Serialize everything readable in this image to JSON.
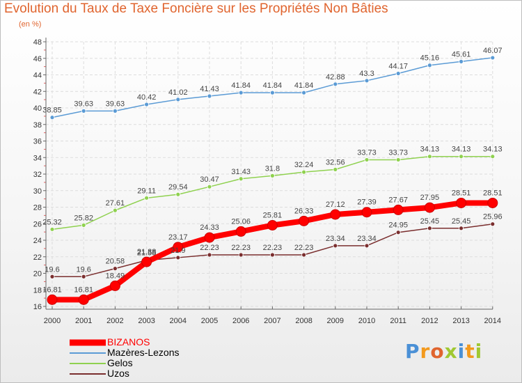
{
  "header": {
    "title": "Evolution du Taux de Taxe Foncière sur les Propriétés Non Bâties",
    "subtitle": "(en %)"
  },
  "logo": {
    "letters": [
      "P",
      "r",
      "o",
      "x",
      "i",
      "t",
      "i"
    ],
    "colors": [
      "#4a90d6",
      "#f39a1e",
      "#e0642e",
      "#a0c832",
      "#4a90d6",
      "#f39a1e",
      "#a0c832"
    ]
  },
  "chart_data": {
    "type": "line",
    "title": "Evolution du Taux de Taxe Foncière sur les Propriétés Non Bâties",
    "subtitle": "(en %)",
    "x": [
      "2000",
      "2001",
      "2002",
      "2003",
      "2004",
      "2005",
      "2006",
      "2007",
      "2008",
      "2009",
      "2010",
      "2011",
      "2012",
      "2013",
      "2014"
    ],
    "ylim": [
      16,
      48
    ],
    "yticks": [
      16,
      18,
      20,
      22,
      24,
      26,
      28,
      30,
      32,
      34,
      36,
      38,
      40,
      42,
      44,
      46,
      48
    ],
    "grid": true,
    "legend_position": "bottom-left",
    "series": [
      {
        "name": "BIZANOS",
        "color": "#ff0000",
        "values": [
          16.81,
          16.81,
          18.49,
          21.38,
          23.17,
          24.33,
          25.06,
          25.81,
          26.33,
          27.12,
          27.39,
          27.67,
          27.95,
          28.51,
          28.51
        ],
        "labels": [
          "16.81",
          "16.81",
          "18.49",
          "21.38",
          "23.17",
          "24.33",
          "25.06",
          "25.81",
          "26.33",
          "27.12",
          "27.39",
          "27.67",
          "27.95",
          "28.51",
          "28.51"
        ]
      },
      {
        "name": "Mazères-Lezons",
        "color": "#5b9bd5",
        "values": [
          38.85,
          39.63,
          39.63,
          40.42,
          41.02,
          41.43,
          41.84,
          41.84,
          41.84,
          42.88,
          43.3,
          44.17,
          45.16,
          45.61,
          46.07
        ],
        "labels": [
          "38.85",
          "39.63",
          "39.63",
          "40.42",
          "41.02",
          "41.43",
          "41.84",
          "41.84",
          "41.84",
          "42.88",
          "43.3",
          "44.17",
          "45.16",
          "45.61",
          "46.07"
        ]
      },
      {
        "name": "Gelos",
        "color": "#8fd14f",
        "values": [
          25.32,
          25.82,
          27.61,
          29.11,
          29.54,
          30.47,
          31.43,
          31.8,
          32.24,
          32.56,
          33.73,
          33.73,
          34.13,
          34.13,
          34.13
        ],
        "labels": [
          "25.32",
          "25.82",
          "27.61",
          "29.11",
          "29.54",
          "30.47",
          "31.43",
          "31.8",
          "32.24",
          "32.56",
          "33.73",
          "33.73",
          "34.13",
          "34.13",
          "34.13"
        ]
      },
      {
        "name": "Uzos",
        "color": "#7a2e2e",
        "values": [
          19.6,
          19.6,
          20.58,
          21.58,
          21.9,
          22.23,
          22.23,
          22.23,
          22.23,
          23.34,
          23.34,
          24.95,
          25.45,
          25.45,
          25.96
        ],
        "labels": [
          "19.6",
          "19.6",
          "20.58",
          "21.58",
          "21.9",
          "22.23",
          "22.23",
          "22.23",
          "22.23",
          "23.34",
          "23.34",
          "24.95",
          "25.45",
          "25.45",
          "25.96"
        ]
      }
    ]
  }
}
